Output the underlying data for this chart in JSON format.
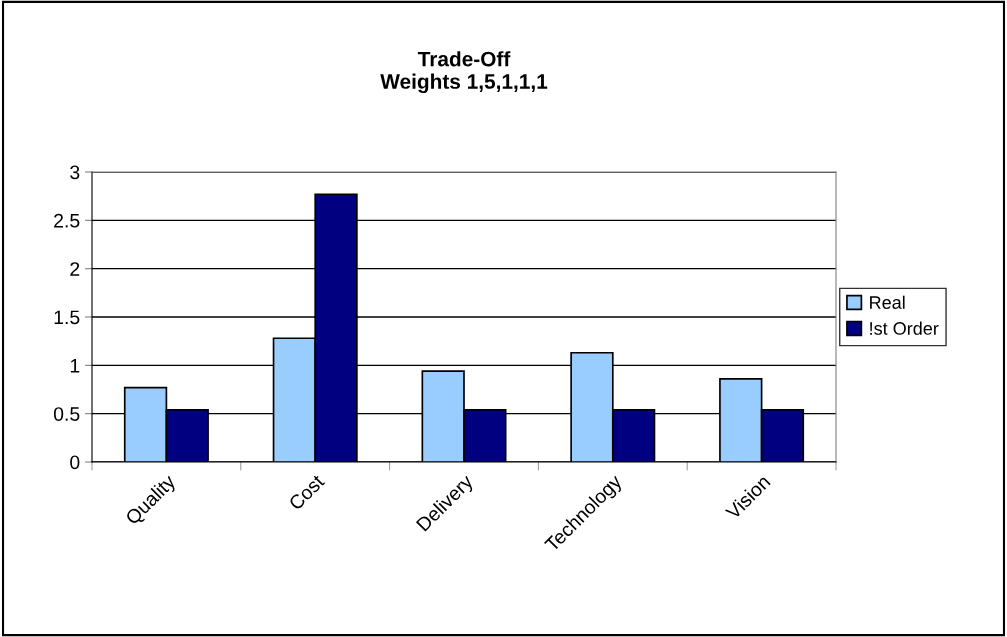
{
  "chart_data": {
    "type": "bar",
    "title": "Trade-Off\nWeights 1,5,1,1,1",
    "categories": [
      "Quality",
      "Cost",
      "Delivery",
      "Technology",
      "Vision"
    ],
    "series": [
      {
        "name": "Real",
        "color": "#99ccff",
        "values": [
          0.77,
          1.28,
          0.94,
          1.13,
          0.86
        ]
      },
      {
        "name": "!st Order",
        "color": "#000080",
        "values": [
          0.54,
          2.77,
          0.54,
          0.54,
          0.54
        ]
      }
    ],
    "ylim": [
      0,
      3
    ],
    "yticks": [
      0,
      0.5,
      1,
      1.5,
      2,
      2.5,
      3
    ],
    "grid": "y",
    "legend": "right"
  }
}
